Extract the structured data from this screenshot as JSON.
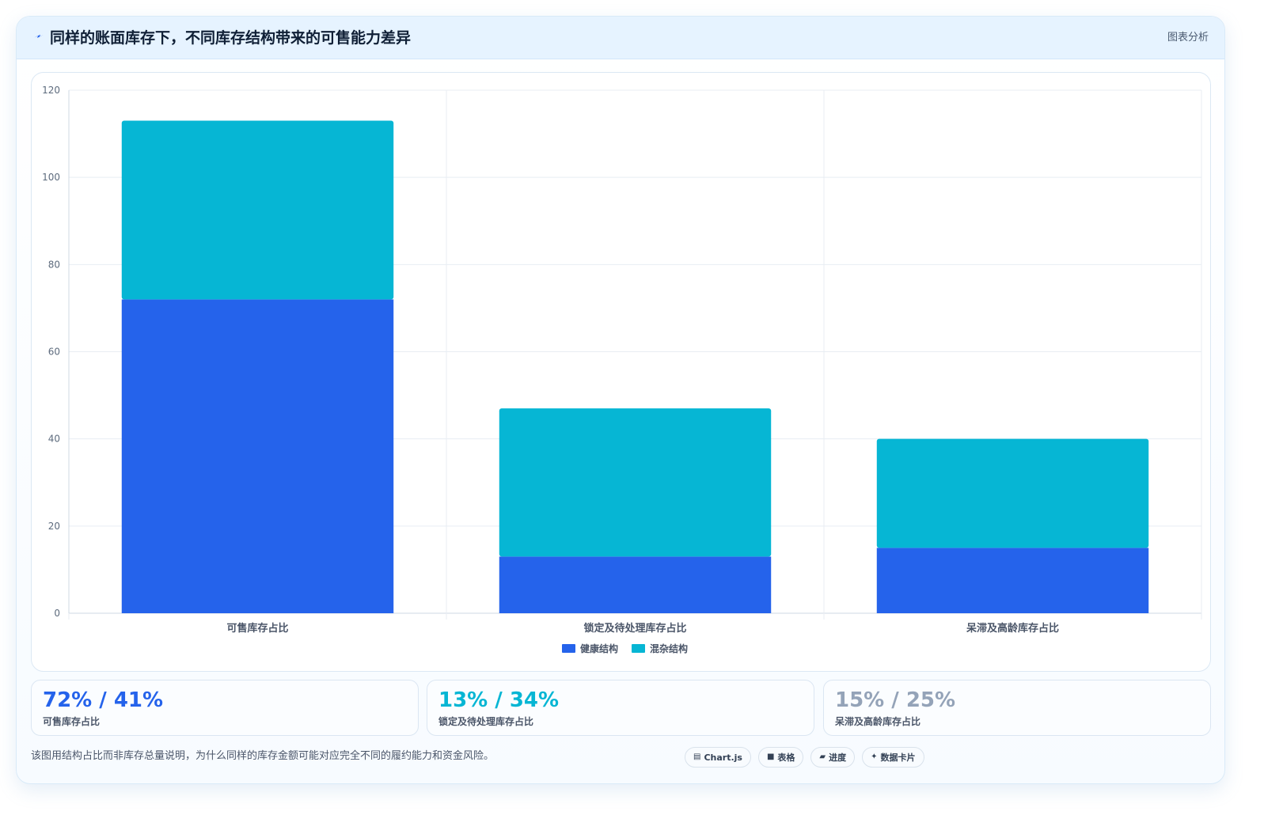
{
  "header": {
    "icon": "lightning-icon",
    "title": "同样的账面库存下，不同库存结构带来的可售能力差异",
    "tag": "图表分析"
  },
  "chart_data": {
    "type": "bar",
    "stacked": true,
    "categories": [
      "可售库存占比",
      "锁定及待处理库存占比",
      "呆滞及高龄库存占比"
    ],
    "series": [
      {
        "name": "健康结构",
        "values": [
          72,
          13,
          15
        ],
        "color": "#2563eb"
      },
      {
        "name": "混杂结构",
        "values": [
          41,
          34,
          25
        ],
        "color": "#06b6d4"
      }
    ],
    "title": "",
    "xlabel": "",
    "ylabel": "",
    "ylim": [
      0,
      120
    ],
    "yticks": [
      0,
      20,
      40,
      60,
      80,
      100,
      120
    ],
    "grid": true,
    "legend_position": "bottom-center"
  },
  "stats": [
    {
      "value": "72% / 41%",
      "label": "可售库存占比",
      "color": "#2563eb"
    },
    {
      "value": "13% / 34%",
      "label": "锁定及待处理库存占比",
      "color": "#06b6d4"
    },
    {
      "value": "15% / 25%",
      "label": "呆滞及高龄库存占比",
      "color": "#94a3b8"
    }
  ],
  "footnote": "该图用结构占比而非库存总量说明，为什么同样的库存金额可能对应完全不同的履约能力和资金风险。",
  "chips": [
    {
      "icon": "chart-icon",
      "label": "Chart.js"
    },
    {
      "icon": "table-icon",
      "label": "表格"
    },
    {
      "icon": "progress-icon",
      "label": "进度"
    },
    {
      "icon": "sparkle-icon",
      "label": "数据卡片"
    }
  ]
}
